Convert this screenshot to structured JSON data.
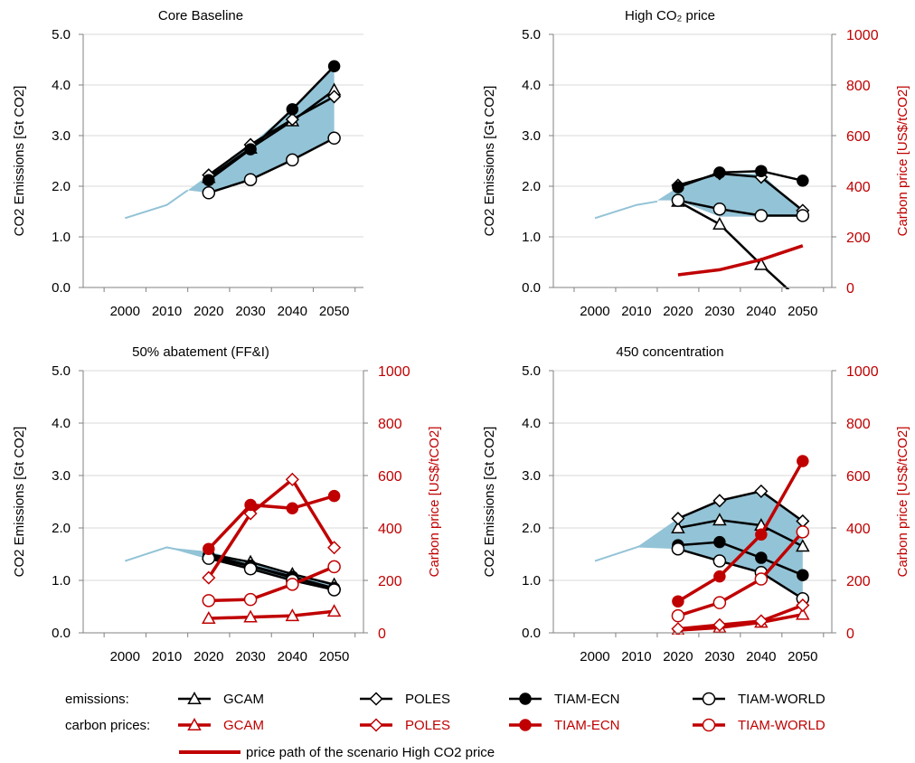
{
  "colors": {
    "emission_line": "#000000",
    "carbon_price": "#c00000",
    "range_fill": "#93c3d6",
    "historic_line": "#93c3d6",
    "gridline": "#d9d9d9",
    "axis": "#808080"
  },
  "legend": {
    "emissions_label": "emissions:",
    "carbon_label": "carbon prices:",
    "models": [
      "GCAM",
      "POLES",
      "TIAM-ECN",
      "TIAM-WORLD"
    ],
    "markers": [
      "triangle",
      "diamond",
      "filled-circle",
      "open-circle"
    ],
    "price_path_label": "price path of the scenario High CO2 price"
  },
  "chart_data": [
    {
      "type": "line",
      "title": "Core Baseline",
      "ylabel": "CO2 Emissions [Gt CO2]",
      "ylim": [
        0,
        5
      ],
      "yticks": [
        "0.0",
        "1.0",
        "2.0",
        "3.0",
        "4.0",
        "5.0"
      ],
      "xticks": [
        "2000",
        "2010",
        "2020",
        "2030",
        "2040",
        "2050"
      ],
      "xlim": [
        1990,
        2057
      ],
      "grid": true,
      "historic": {
        "x": [
          2000,
          2010,
          2015
        ],
        "y": [
          1.37,
          1.63,
          1.92
        ]
      },
      "range_band": {
        "x": [
          2015,
          2020,
          2030,
          2040,
          2050
        ],
        "upper": [
          1.92,
          2.22,
          2.82,
          3.52,
          4.37
        ],
        "lower": [
          1.92,
          1.87,
          2.13,
          2.52,
          2.95
        ]
      },
      "emissions": [
        {
          "name": "GCAM",
          "x": [
            2020,
            2030,
            2040,
            2050
          ],
          "y": [
            2.17,
            2.75,
            3.29,
            3.9
          ]
        },
        {
          "name": "POLES",
          "x": [
            2020,
            2030,
            2040,
            2050
          ],
          "y": [
            2.22,
            2.82,
            3.32,
            3.77
          ]
        },
        {
          "name": "TIAM-ECN",
          "x": [
            2020,
            2030,
            2040,
            2050
          ],
          "y": [
            2.12,
            2.73,
            3.52,
            4.37
          ]
        },
        {
          "name": "TIAM-WORLD",
          "x": [
            2020,
            2030,
            2040,
            2050
          ],
          "y": [
            1.87,
            2.13,
            2.52,
            2.95
          ]
        }
      ]
    },
    {
      "type": "line",
      "title": "High CO₂ price",
      "ylabel": "CO2 Emissions [Gt CO2]",
      "y2label": "Carbon price [US$/tCO2]",
      "ylim": [
        0,
        5
      ],
      "y2lim": [
        0,
        1000
      ],
      "yticks": [
        "0.0",
        "1.0",
        "2.0",
        "3.0",
        "4.0",
        "5.0"
      ],
      "y2ticks": [
        "0",
        "200",
        "400",
        "600",
        "800",
        "1000"
      ],
      "xticks": [
        "2000",
        "2010",
        "2020",
        "2030",
        "2040",
        "2050"
      ],
      "xlim": [
        1990,
        2057
      ],
      "grid": true,
      "historic": {
        "x": [
          2000,
          2010,
          2015
        ],
        "y": [
          1.37,
          1.63,
          1.7
        ]
      },
      "range_band": {
        "x": [
          2015,
          2020,
          2030,
          2040,
          2050
        ],
        "upper": [
          1.72,
          1.98,
          2.25,
          2.25,
          1.5
        ],
        "lower": [
          1.72,
          1.72,
          1.4,
          1.4,
          1.4
        ]
      },
      "emissions": [
        {
          "name": "GCAM",
          "x": [
            2020,
            2030,
            2040,
            2050
          ],
          "y": [
            1.7,
            1.25,
            0.45,
            -0.3
          ]
        },
        {
          "name": "POLES",
          "x": [
            2020,
            2030,
            2040,
            2050
          ],
          "y": [
            2.02,
            2.25,
            2.18,
            1.52
          ]
        },
        {
          "name": "TIAM-ECN",
          "x": [
            2020,
            2030,
            2040,
            2050
          ],
          "y": [
            1.98,
            2.27,
            2.3,
            2.11
          ]
        },
        {
          "name": "TIAM-WORLD",
          "x": [
            2020,
            2030,
            2040,
            2050
          ],
          "y": [
            1.72,
            1.55,
            1.42,
            1.42
          ]
        }
      ],
      "price_path": {
        "x": [
          2020,
          2030,
          2040,
          2050
        ],
        "y": [
          50,
          70,
          110,
          165
        ]
      }
    },
    {
      "type": "line",
      "title": "50% abatement (FF&I)",
      "ylabel": "CO2 Emissions [Gt CO2]",
      "y2label": "Carbon price [US$/tCO2]",
      "ylim": [
        0,
        5
      ],
      "y2lim": [
        0,
        1000
      ],
      "yticks": [
        "0.0",
        "1.0",
        "2.0",
        "3.0",
        "4.0",
        "5.0"
      ],
      "y2ticks": [
        "0",
        "200",
        "400",
        "600",
        "800",
        "1000"
      ],
      "xticks": [
        "2000",
        "2010",
        "2020",
        "2030",
        "2040",
        "2050"
      ],
      "xlim": [
        1990,
        2057
      ],
      "grid": true,
      "historic": {
        "x": [
          2000,
          2010,
          2015
        ],
        "y": [
          1.37,
          1.63,
          1.55
        ]
      },
      "range_band": {
        "x": [
          2010,
          2020,
          2030,
          2040,
          2050
        ],
        "upper": [
          1.63,
          1.55,
          1.35,
          1.12,
          0.92
        ],
        "lower": [
          1.63,
          1.4,
          1.2,
          1.0,
          0.82
        ]
      },
      "emissions": [
        {
          "name": "GCAM",
          "x": [
            2020,
            2030,
            2040,
            2050
          ],
          "y": [
            1.5,
            1.35,
            1.12,
            0.92
          ]
        },
        {
          "name": "POLES",
          "x": [
            2020,
            2030,
            2040,
            2050
          ],
          "y": [
            1.45,
            1.27,
            1.05,
            0.85
          ]
        },
        {
          "name": "TIAM-ECN",
          "x": [
            2020,
            2030,
            2040,
            2050
          ],
          "y": [
            1.48,
            1.28,
            1.07,
            0.85
          ]
        },
        {
          "name": "TIAM-WORLD",
          "x": [
            2020,
            2030,
            2040,
            2050
          ],
          "y": [
            1.42,
            1.22,
            1.0,
            0.82
          ]
        }
      ],
      "carbon_prices": [
        {
          "name": "GCAM",
          "x": [
            2020,
            2030,
            2040,
            2050
          ],
          "y": [
            55,
            60,
            65,
            82
          ]
        },
        {
          "name": "POLES",
          "x": [
            2020,
            2030,
            2040,
            2050
          ],
          "y": [
            210,
            455,
            585,
            325
          ]
        },
        {
          "name": "TIAM-ECN",
          "x": [
            2020,
            2030,
            2040,
            2050
          ],
          "y": [
            320,
            488,
            475,
            522
          ]
        },
        {
          "name": "TIAM-WORLD",
          "x": [
            2020,
            2030,
            2040,
            2050
          ],
          "y": [
            123,
            127,
            185,
            252
          ]
        }
      ]
    },
    {
      "type": "line",
      "title": "450 concentration",
      "ylabel": "CO2 Emissions [Gt CO2]",
      "y2label": "Carbon price [US$/tCO2]",
      "ylim": [
        0,
        5
      ],
      "y2lim": [
        0,
        1000
      ],
      "yticks": [
        "0.0",
        "1.0",
        "2.0",
        "3.0",
        "4.0",
        "5.0"
      ],
      "y2ticks": [
        "0",
        "200",
        "400",
        "600",
        "800",
        "1000"
      ],
      "xticks": [
        "2000",
        "2010",
        "2020",
        "2030",
        "2040",
        "2050"
      ],
      "xlim": [
        1990,
        2057
      ],
      "grid": true,
      "historic": {
        "x": [
          2000,
          2010,
          2015
        ],
        "y": [
          1.37,
          1.63,
          1.77
        ]
      },
      "range_band": {
        "x": [
          2010,
          2020,
          2030,
          2040,
          2050
        ],
        "upper": [
          1.63,
          2.18,
          2.52,
          2.7,
          2.13
        ],
        "lower": [
          1.63,
          1.6,
          1.37,
          1.15,
          0.65
        ]
      },
      "emissions": [
        {
          "name": "GCAM",
          "x": [
            2020,
            2030,
            2040,
            2050
          ],
          "y": [
            2.0,
            2.15,
            2.05,
            1.65
          ]
        },
        {
          "name": "POLES",
          "x": [
            2020,
            2030,
            2040,
            2050
          ],
          "y": [
            2.18,
            2.52,
            2.7,
            2.13
          ]
        },
        {
          "name": "TIAM-ECN",
          "x": [
            2020,
            2030,
            2040,
            2050
          ],
          "y": [
            1.67,
            1.73,
            1.43,
            1.1
          ]
        },
        {
          "name": "TIAM-WORLD",
          "x": [
            2020,
            2030,
            2040,
            2050
          ],
          "y": [
            1.6,
            1.37,
            1.15,
            0.65
          ]
        }
      ],
      "carbon_prices": [
        {
          "name": "GCAM",
          "x": [
            2020,
            2030,
            2040,
            2050
          ],
          "y": [
            10,
            20,
            40,
            70
          ]
        },
        {
          "name": "POLES",
          "x": [
            2020,
            2030,
            2040,
            2050
          ],
          "y": [
            15,
            30,
            45,
            105
          ]
        },
        {
          "name": "TIAM-ECN",
          "x": [
            2020,
            2030,
            2040,
            2050
          ],
          "y": [
            120,
            215,
            375,
            655
          ]
        },
        {
          "name": "TIAM-WORLD",
          "x": [
            2020,
            2030,
            2040,
            2050
          ],
          "y": [
            65,
            115,
            205,
            385
          ]
        }
      ]
    }
  ]
}
